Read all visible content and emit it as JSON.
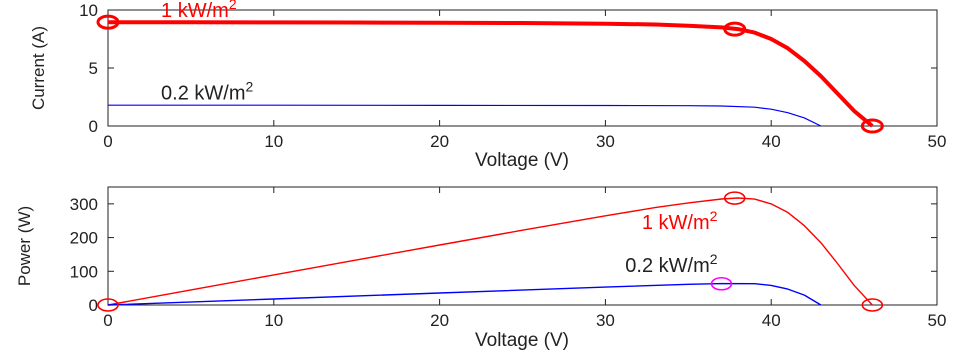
{
  "chart_data": [
    {
      "type": "line",
      "xlabel": "Voltage (V)",
      "ylabel": "Current (A)",
      "xlim": [
        0,
        50
      ],
      "ylim": [
        0,
        10
      ],
      "xticks": [
        "0",
        "10",
        "20",
        "30",
        "40",
        "50"
      ],
      "yticks": [
        "0",
        "5",
        "10"
      ],
      "grid": false,
      "series": [
        {
          "color": "#ff0000",
          "x": [
            0,
            5,
            10,
            15,
            20,
            25,
            30,
            33,
            35,
            37,
            38,
            39,
            40,
            41,
            42,
            43,
            44,
            45,
            46.1
          ],
          "y": [
            8.95,
            8.94,
            8.93,
            8.92,
            8.9,
            8.88,
            8.82,
            8.75,
            8.65,
            8.5,
            8.35,
            8.05,
            7.5,
            6.7,
            5.6,
            4.3,
            2.8,
            1.3,
            0
          ]
        },
        {
          "color": "#0000ff",
          "x": [
            0,
            10,
            20,
            30,
            35,
            37,
            39,
            40,
            41,
            42,
            43
          ],
          "y": [
            1.79,
            1.79,
            1.78,
            1.77,
            1.75,
            1.72,
            1.62,
            1.45,
            1.15,
            0.7,
            0
          ]
        }
      ],
      "markers": [
        {
          "color": "#ff0000",
          "x": 0,
          "y": 8.95
        },
        {
          "color": "#ff0000",
          "x": 37.8,
          "y": 8.35
        },
        {
          "color": "#ff0000",
          "x": 46.1,
          "y": 0
        }
      ],
      "annotations": [
        {
          "text": "1 kW/m",
          "sup": "2",
          "color": "#ff0000",
          "x": 3.2,
          "y": 9.4
        },
        {
          "text": "0.2 kW/m",
          "sup": "2",
          "color": "#222222",
          "x": 3.2,
          "y": 2.3
        }
      ]
    },
    {
      "type": "line",
      "xlabel": "Voltage (V)",
      "ylabel": "Power (W)",
      "xlim": [
        0,
        50
      ],
      "ylim": [
        0,
        350
      ],
      "xticks": [
        "0",
        "10",
        "20",
        "30",
        "40",
        "50"
      ],
      "yticks": [
        "0",
        "100",
        "200",
        "300"
      ],
      "grid": false,
      "series": [
        {
          "color": "#ff0000",
          "x": [
            0,
            5,
            10,
            15,
            20,
            25,
            30,
            33,
            35,
            37,
            38,
            39,
            40,
            41,
            42,
            43,
            44,
            45,
            46.1
          ],
          "y": [
            0,
            44.7,
            89.3,
            133.8,
            178,
            222,
            264.6,
            288.8,
            302.8,
            314.5,
            317.3,
            314,
            300,
            274.7,
            235.2,
            184.9,
            123.2,
            58.5,
            0
          ]
        },
        {
          "color": "#0000ff",
          "x": [
            0,
            10,
            20,
            30,
            35,
            37,
            39,
            40,
            41,
            42,
            43
          ],
          "y": [
            0,
            17.9,
            35.6,
            53.1,
            61.3,
            63.6,
            63.2,
            58,
            47.2,
            29.4,
            0
          ]
        }
      ],
      "markers": [
        {
          "color": "#ff0000",
          "x": 0,
          "y": 0
        },
        {
          "color": "#ff0000",
          "x": 37.8,
          "y": 317
        },
        {
          "color": "#ff0000",
          "x": 46.1,
          "y": 0
        },
        {
          "color": "#ff00ff",
          "x": 37,
          "y": 63
        }
      ],
      "annotations": [
        {
          "text": "1 kW/m",
          "sup": "2",
          "color": "#ff0000",
          "x": 32.2,
          "y": 225
        },
        {
          "text": "0.2 kW/m",
          "sup": "2",
          "color": "#222222",
          "x": 31.2,
          "y": 98
        }
      ]
    }
  ]
}
